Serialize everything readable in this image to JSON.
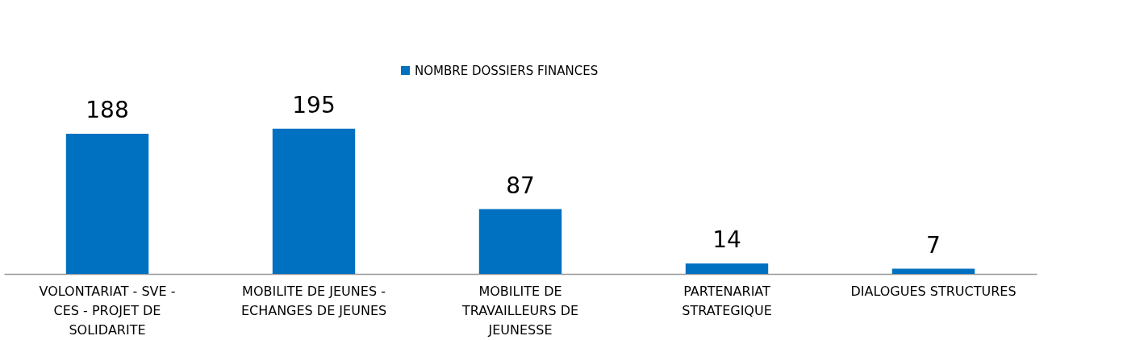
{
  "chart_data": {
    "type": "bar",
    "categories": [
      "VOLONTARIAT - SVE - CES - PROJET DE SOLIDARITE",
      "MOBILITE DE JEUNES - ECHANGES DE JEUNES",
      "MOBILITE DE TRAVAILLEURS DE JEUNESSE",
      "PARTENARIAT STRATEGIQUE",
      "DIALOGUES STRUCTURES"
    ],
    "series": [
      {
        "name": "NOMBRE DOSSIERS FINANCES",
        "color": "#0070c0",
        "values": [
          188,
          195,
          87,
          14,
          7
        ]
      }
    ],
    "data_labels": true,
    "legend": "top"
  }
}
